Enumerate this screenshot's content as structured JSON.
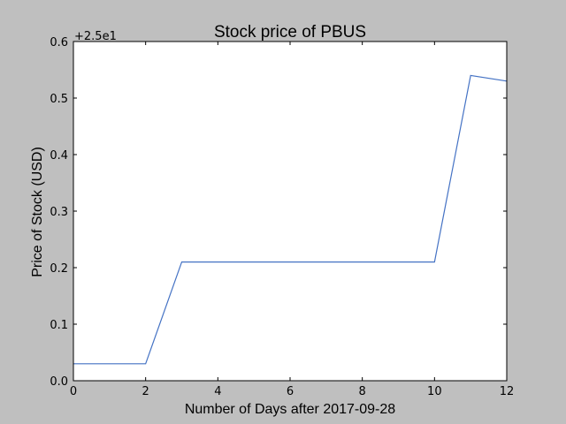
{
  "chart_data": {
    "type": "line",
    "title": "Stock price of PBUS",
    "xlabel": "Number of Days after 2017-09-28",
    "ylabel": "Price of Stock (USD)",
    "y_offset_label": "+2.5e1",
    "x_ticks": [
      "0",
      "2",
      "4",
      "6",
      "8",
      "10",
      "12"
    ],
    "y_ticks": [
      "0.0",
      "0.1",
      "0.2",
      "0.3",
      "0.4",
      "0.5",
      "0.6"
    ],
    "xlim": [
      0,
      12
    ],
    "ylim": [
      0,
      0.6
    ],
    "grid": false,
    "series": [
      {
        "x": [
          0,
          1,
          2,
          3,
          4,
          5,
          6,
          7,
          8,
          9,
          10,
          11,
          12
        ],
        "y": [
          0.03,
          0.03,
          0.03,
          0.21,
          0.21,
          0.21,
          0.21,
          0.21,
          0.21,
          0.21,
          0.21,
          0.54,
          0.53
        ],
        "color": "#4472c4"
      }
    ]
  }
}
